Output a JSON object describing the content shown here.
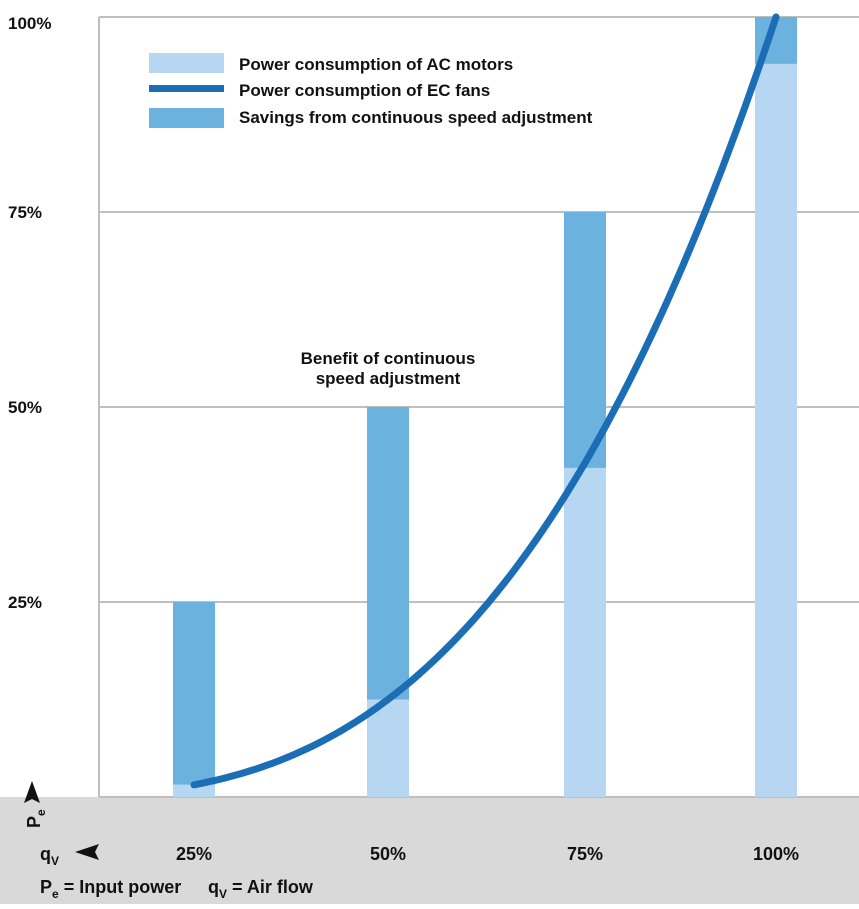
{
  "colors": {
    "ac_motor": "#b6d6f1",
    "ec_fan": "#1b6db5",
    "savings": "#6bb2df",
    "grid": "#bfbfbf",
    "axis_band": "#d9d9d9",
    "text": "#111111"
  },
  "chart_data": {
    "type": "bar",
    "categories": [
      "25%",
      "50%",
      "75%",
      "100%"
    ],
    "x_percent": [
      25,
      50,
      75,
      100
    ],
    "ylim": [
      0,
      100
    ],
    "yticks": [
      25,
      50,
      75,
      100
    ],
    "ytick_labels": [
      "25%",
      "50%",
      "75%",
      "100%"
    ],
    "grid": true,
    "legend_position": "top-left",
    "series": [
      {
        "name": "Power consumption of AC motors",
        "kind": "bar",
        "values": [
          25,
          50,
          75,
          100
        ]
      },
      {
        "name": "Power consumption of EC fans",
        "kind": "line",
        "x": [
          25,
          50,
          75,
          100
        ],
        "values": [
          1.6,
          12.5,
          42.2,
          100
        ]
      },
      {
        "name": "Savings from continuous speed adjustment",
        "kind": "bar-segment",
        "values": [
          23.4,
          37.5,
          32.8,
          0
        ]
      }
    ],
    "annotation": "Benefit of continuous\nspeed adjustment",
    "ylabel_main": "P",
    "ylabel_sub": "e",
    "xlabel_main": "q",
    "xlabel_sub": "V",
    "footer": {
      "pe_main": "P",
      "pe_sub": "e",
      "pe_text": " = Input power",
      "qv_main": "q",
      "qv_sub": "V",
      "qv_text": " = Air flow"
    }
  }
}
